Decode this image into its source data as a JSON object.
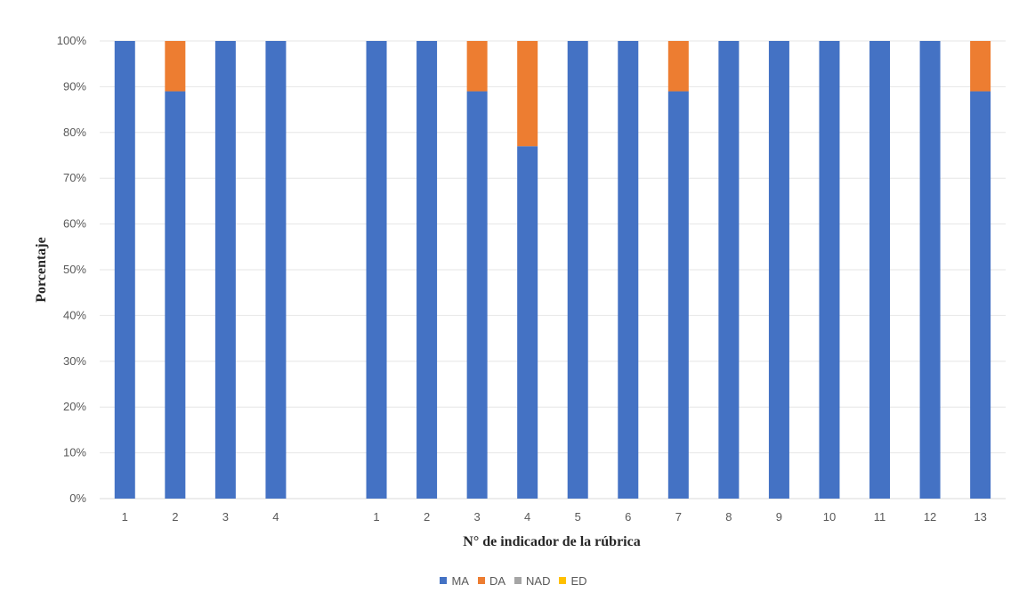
{
  "chart_data": {
    "type": "bar",
    "stacked": true,
    "xlabel": "N° de indicador de la rúbrica",
    "ylabel": "Porcentaje",
    "ylim": [
      0,
      1
    ],
    "y_tick_labels": [
      "0%",
      "10%",
      "20%",
      "30%",
      "40%",
      "50%",
      "60%",
      "70%",
      "80%",
      "90%",
      "100%"
    ],
    "grid": true,
    "legend_position": "bottom",
    "groups": [
      {
        "categories": [
          "1",
          "2",
          "3",
          "4"
        ]
      },
      {
        "categories": [
          "1",
          "2",
          "3",
          "4",
          "5",
          "6",
          "7",
          "8",
          "9",
          "10",
          "11",
          "12",
          "13"
        ]
      }
    ],
    "series": [
      {
        "name": "MA",
        "color": "#4472C4",
        "values": [
          1.0,
          0.89,
          1.0,
          1.0,
          1.0,
          1.0,
          0.89,
          0.77,
          1.0,
          1.0,
          0.89,
          1.0,
          1.0,
          1.0,
          1.0,
          1.0,
          0.89
        ]
      },
      {
        "name": "DA",
        "color": "#ED7D31",
        "values": [
          0.0,
          0.11,
          0.0,
          0.0,
          0.0,
          0.0,
          0.11,
          0.23,
          0.0,
          0.0,
          0.11,
          0.0,
          0.0,
          0.0,
          0.0,
          0.0,
          0.11
        ]
      },
      {
        "name": "NAD",
        "color": "#A5A5A5",
        "values": [
          0,
          0,
          0,
          0,
          0,
          0,
          0,
          0,
          0,
          0,
          0,
          0,
          0,
          0,
          0,
          0,
          0
        ]
      },
      {
        "name": "ED",
        "color": "#FFC000",
        "values": [
          0,
          0,
          0,
          0,
          0,
          0,
          0,
          0,
          0,
          0,
          0,
          0,
          0,
          0,
          0,
          0,
          0
        ]
      }
    ]
  }
}
